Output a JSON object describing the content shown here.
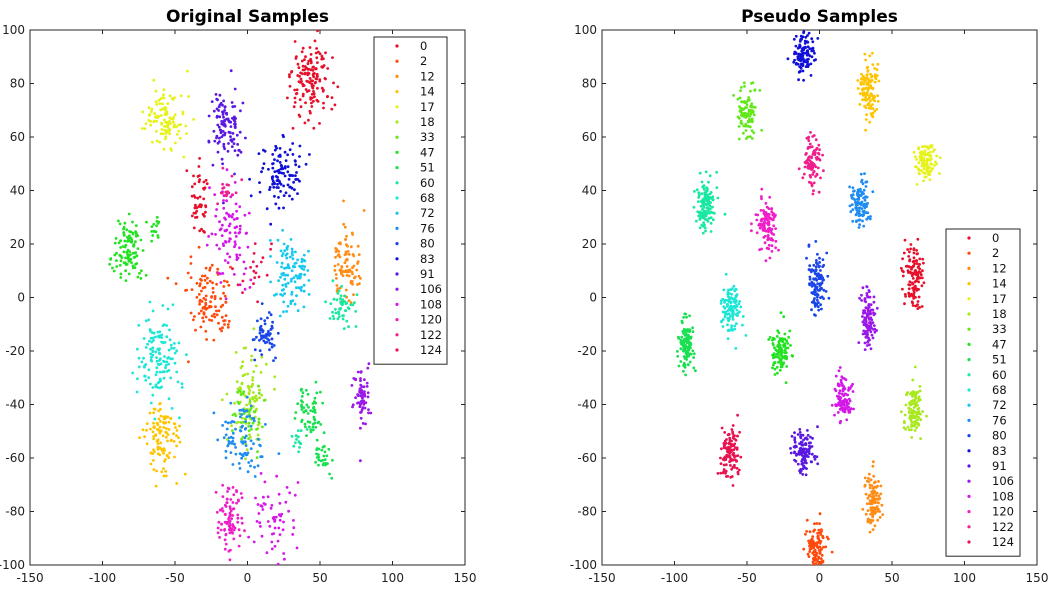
{
  "chart_data": [
    {
      "type": "scatter",
      "title": "Original Samples",
      "xlim": [
        -150,
        150
      ],
      "ylim": [
        -100,
        100
      ],
      "xticks": [
        -150,
        -100,
        -50,
        0,
        50,
        100,
        150
      ],
      "yticks": [
        -100,
        -80,
        -60,
        -40,
        -20,
        0,
        20,
        40,
        60,
        80,
        100
      ],
      "grid": false,
      "legend_position": "top-right",
      "series": [
        {
          "name": "0",
          "color": "#e6102a",
          "clusters": [
            {
              "x": 44,
              "y": 80,
              "sx": 7,
              "sy": 8,
              "n": 150
            },
            {
              "x": -33,
              "y": 36,
              "sx": 3,
              "sy": 6,
              "n": 50
            }
          ]
        },
        {
          "name": "2",
          "color": "#ff4a0c",
          "clusters": [
            {
              "x": -27,
              "y": -3,
              "sx": 7,
              "sy": 7,
              "n": 110
            }
          ]
        },
        {
          "name": "12",
          "color": "#ff8c14",
          "clusters": [
            {
              "x": 68,
              "y": 13,
              "sx": 5,
              "sy": 7,
              "n": 90
            }
          ]
        },
        {
          "name": "14",
          "color": "#ffc400",
          "clusters": [
            {
              "x": -59,
              "y": -53,
              "sx": 6,
              "sy": 7,
              "n": 110
            }
          ]
        },
        {
          "name": "17",
          "color": "#e6f21a",
          "clusters": [
            {
              "x": -57,
              "y": 67,
              "sx": 7,
              "sy": 6,
              "n": 110
            }
          ]
        },
        {
          "name": "18",
          "color": "#a8e81e",
          "clusters": [
            {
              "x": 0,
              "y": -37,
              "sx": 6,
              "sy": 8,
              "n": 90
            }
          ]
        },
        {
          "name": "33",
          "color": "#62e81c",
          "clusters": [
            {
              "x": 0,
              "y": -45,
              "sx": 5,
              "sy": 6,
              "n": 50
            }
          ]
        },
        {
          "name": "47",
          "color": "#22e222",
          "clusters": [
            {
              "x": -82,
              "y": 18,
              "sx": 5,
              "sy": 6,
              "n": 110
            },
            {
              "x": -63,
              "y": 25,
              "sx": 2,
              "sy": 3,
              "n": 15
            }
          ]
        },
        {
          "name": "51",
          "color": "#18e050",
          "clusters": [
            {
              "x": 44,
              "y": -42,
              "sx": 4,
              "sy": 5,
              "n": 60
            },
            {
              "x": 52,
              "y": -59,
              "sx": 3,
              "sy": 3,
              "n": 30
            }
          ]
        },
        {
          "name": "60",
          "color": "#18e8a0",
          "clusters": [
            {
              "x": 66,
              "y": -3,
              "sx": 5,
              "sy": 4,
              "n": 50
            },
            {
              "x": 35,
              "y": -52,
              "sx": 2,
              "sy": 3,
              "n": 15
            }
          ]
        },
        {
          "name": "68",
          "color": "#1ee6d6",
          "clusters": [
            {
              "x": -62,
              "y": -22,
              "sx": 7,
              "sy": 9,
              "n": 130
            }
          ]
        },
        {
          "name": "72",
          "color": "#18c8f0",
          "clusters": [
            {
              "x": 30,
              "y": 10,
              "sx": 6,
              "sy": 7,
              "n": 110
            }
          ]
        },
        {
          "name": "76",
          "color": "#1e8cf0",
          "clusters": [
            {
              "x": -5,
              "y": -52,
              "sx": 8,
              "sy": 7,
              "n": 90
            }
          ]
        },
        {
          "name": "80",
          "color": "#1a46e8",
          "clusters": [
            {
              "x": 13,
              "y": -14,
              "sx": 4,
              "sy": 5,
              "n": 60
            }
          ]
        },
        {
          "name": "83",
          "color": "#1010d8",
          "clusters": [
            {
              "x": 23,
              "y": 46,
              "sx": 7,
              "sy": 7,
              "n": 110
            }
          ]
        },
        {
          "name": "91",
          "color": "#5a18e0",
          "clusters": [
            {
              "x": -15,
              "y": 64,
              "sx": 6,
              "sy": 7,
              "n": 110
            }
          ]
        },
        {
          "name": "106",
          "color": "#9a18e8",
          "clusters": [
            {
              "x": 79,
              "y": -37,
              "sx": 3,
              "sy": 6,
              "n": 70
            }
          ]
        },
        {
          "name": "108",
          "color": "#d418e8",
          "clusters": [
            {
              "x": -10,
              "y": 25,
              "sx": 6,
              "sy": 9,
              "n": 90
            },
            {
              "x": 15,
              "y": -82,
              "sx": 8,
              "sy": 7,
              "n": 60
            }
          ]
        },
        {
          "name": "120",
          "color": "#f01ec8",
          "clusters": [
            {
              "x": -12,
              "y": -82,
              "sx": 4,
              "sy": 6,
              "n": 90
            }
          ]
        },
        {
          "name": "122",
          "color": "#f01e8c",
          "clusters": [
            {
              "x": -14,
              "y": 40,
              "sx": 3,
              "sy": 4,
              "n": 20
            }
          ]
        },
        {
          "name": "124",
          "color": "#e81450",
          "clusters": [
            {
              "x": 5,
              "y": 10,
              "sx": 6,
              "sy": 6,
              "n": 20
            }
          ]
        }
      ]
    },
    {
      "type": "scatter",
      "title": "Pseudo Samples",
      "xlim": [
        -150,
        150
      ],
      "ylim": [
        -100,
        100
      ],
      "xticks": [
        -150,
        -100,
        -50,
        0,
        50,
        100,
        150
      ],
      "yticks": [
        -100,
        -80,
        -60,
        -40,
        -20,
        0,
        20,
        40,
        60,
        80,
        100
      ],
      "grid": false,
      "legend_position": "right",
      "series": [
        {
          "name": "0",
          "color": "#e6102a",
          "clusters": [
            {
              "x": 65,
              "y": 8,
              "sx": 3.5,
              "sy": 6,
              "n": 120
            }
          ]
        },
        {
          "name": "2",
          "color": "#ff4a0c",
          "clusters": [
            {
              "x": -2,
              "y": -95,
              "sx": 3.5,
              "sy": 5,
              "n": 120
            }
          ]
        },
        {
          "name": "12",
          "color": "#ff8c14",
          "clusters": [
            {
              "x": 37,
              "y": -76,
              "sx": 3,
              "sy": 5,
              "n": 110
            }
          ]
        },
        {
          "name": "14",
          "color": "#ffc400",
          "clusters": [
            {
              "x": 34,
              "y": 78,
              "sx": 3.5,
              "sy": 5,
              "n": 120
            }
          ]
        },
        {
          "name": "17",
          "color": "#e6f21a",
          "clusters": [
            {
              "x": 73,
              "y": 51,
              "sx": 3.5,
              "sy": 3.5,
              "n": 110
            }
          ]
        },
        {
          "name": "18",
          "color": "#a8e81e",
          "clusters": [
            {
              "x": 65,
              "y": -43,
              "sx": 3.5,
              "sy": 4.5,
              "n": 110
            }
          ]
        },
        {
          "name": "33",
          "color": "#62e81c",
          "clusters": [
            {
              "x": -50,
              "y": 70,
              "sx": 3,
              "sy": 4,
              "n": 110
            }
          ]
        },
        {
          "name": "47",
          "color": "#22e222",
          "clusters": [
            {
              "x": -27,
              "y": -20,
              "sx": 3,
              "sy": 4.5,
              "n": 110
            }
          ]
        },
        {
          "name": "51",
          "color": "#18e050",
          "clusters": [
            {
              "x": -92,
              "y": -18,
              "sx": 2.5,
              "sy": 5,
              "n": 110
            }
          ]
        },
        {
          "name": "60",
          "color": "#18e8a0",
          "clusters": [
            {
              "x": -79,
              "y": 34,
              "sx": 3.5,
              "sy": 4.5,
              "n": 120
            }
          ]
        },
        {
          "name": "68",
          "color": "#1ee6d6",
          "clusters": [
            {
              "x": -61,
              "y": -5,
              "sx": 3,
              "sy": 5,
              "n": 110
            }
          ]
        },
        {
          "name": "72",
          "color": "#18c8f0",
          "clusters": [
            {
              "x": 117,
              "y": -16,
              "sx": 1.5,
              "sy": 1.5,
              "n": 12
            }
          ]
        },
        {
          "name": "76",
          "color": "#1e8cf0",
          "clusters": [
            {
              "x": 29,
              "y": 35,
              "sx": 3.5,
              "sy": 4.5,
              "n": 110
            }
          ]
        },
        {
          "name": "80",
          "color": "#1a46e8",
          "clusters": [
            {
              "x": -2,
              "y": 7,
              "sx": 3,
              "sy": 6,
              "n": 120
            }
          ]
        },
        {
          "name": "83",
          "color": "#1010d8",
          "clusters": [
            {
              "x": -11,
              "y": 91,
              "sx": 3.5,
              "sy": 4,
              "n": 110
            }
          ]
        },
        {
          "name": "91",
          "color": "#5a18e0",
          "clusters": [
            {
              "x": -11,
              "y": -58,
              "sx": 4,
              "sy": 4,
              "n": 120
            }
          ]
        },
        {
          "name": "106",
          "color": "#9a18e8",
          "clusters": [
            {
              "x": 34,
              "y": -8,
              "sx": 2.5,
              "sy": 5.5,
              "n": 110
            }
          ]
        },
        {
          "name": "108",
          "color": "#d418e8",
          "clusters": [
            {
              "x": 16,
              "y": -37,
              "sx": 3,
              "sy": 4.5,
              "n": 100
            }
          ]
        },
        {
          "name": "120",
          "color": "#f01ec8",
          "clusters": [
            {
              "x": -36,
              "y": 27,
              "sx": 3.5,
              "sy": 5.5,
              "n": 110
            }
          ]
        },
        {
          "name": "122",
          "color": "#f01e8c",
          "clusters": [
            {
              "x": -5,
              "y": 51,
              "sx": 3,
              "sy": 4.5,
              "n": 100
            }
          ]
        },
        {
          "name": "124",
          "color": "#e81450",
          "clusters": [
            {
              "x": -62,
              "y": -58,
              "sx": 3.5,
              "sy": 5,
              "n": 120
            }
          ]
        }
      ]
    }
  ]
}
